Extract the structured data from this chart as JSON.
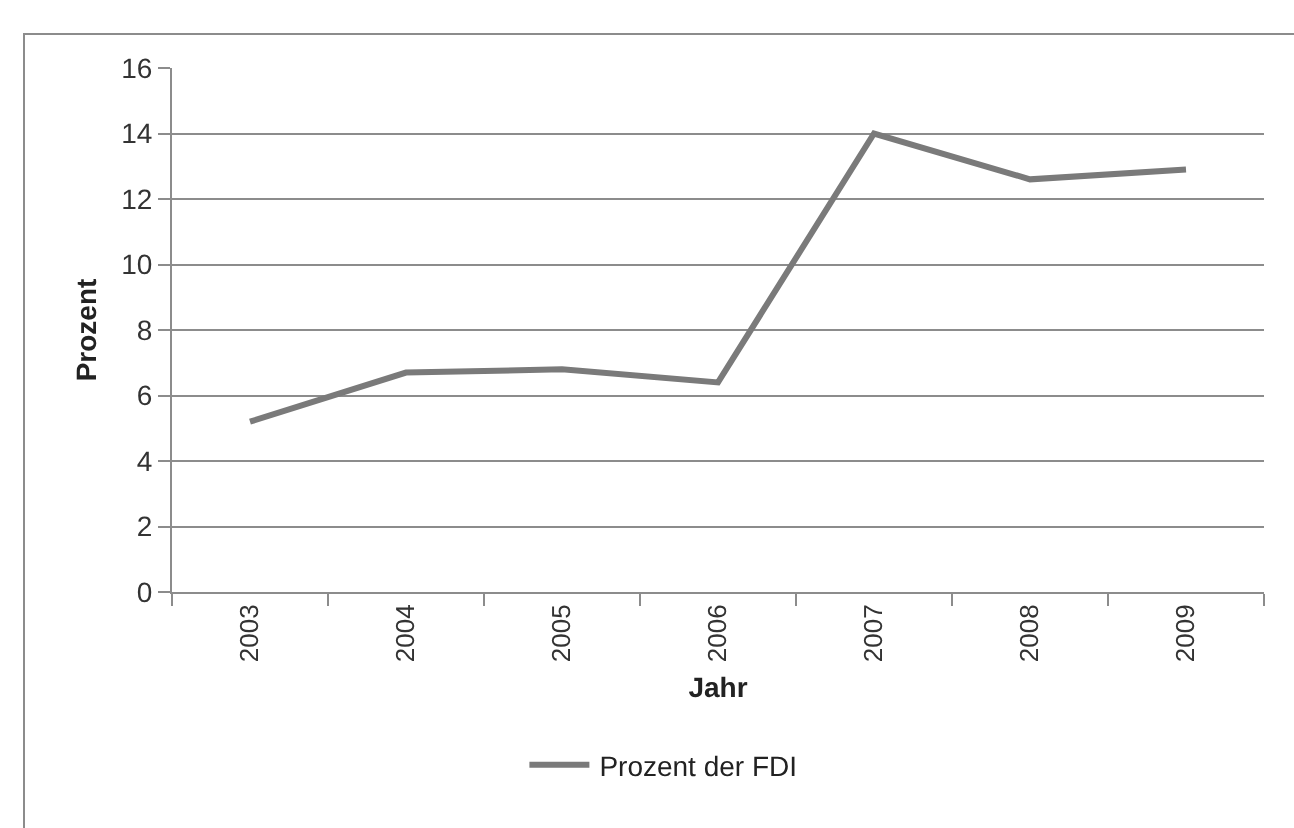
{
  "chart_data": {
    "type": "line",
    "xlabel": "Jahr",
    "ylabel": "Prozent",
    "categories": [
      "2003",
      "2004",
      "2005",
      "2006",
      "2007",
      "2008",
      "2009"
    ],
    "series": [
      {
        "name": "Prozent der FDI",
        "color": "#7a7a7a",
        "values": [
          5.2,
          6.7,
          6.8,
          6.4,
          14.0,
          12.6,
          12.9
        ]
      }
    ],
    "ylim": [
      0,
      16
    ],
    "yticks": [
      0,
      2,
      4,
      6,
      8,
      10,
      12,
      14,
      16
    ],
    "grid": "y",
    "legend": "bottom",
    "line_style": "solid"
  }
}
